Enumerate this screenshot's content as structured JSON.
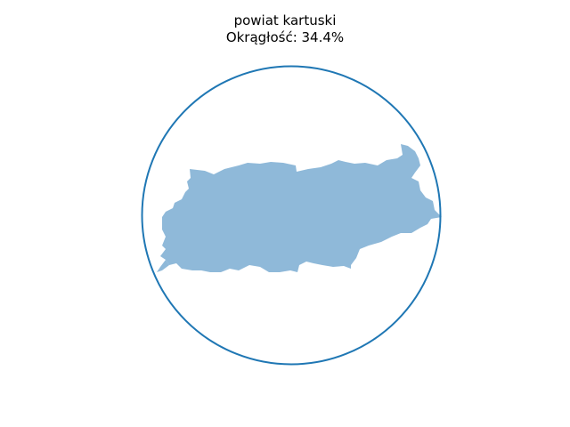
{
  "chart_data": {
    "type": "area",
    "title": "powiat kartuski",
    "subtitle": "Okrągłość: 34.4%",
    "metric": {
      "label": "Okrągłość",
      "value_percent": 34.4
    },
    "series": [
      {
        "kind": "region-shape",
        "color": "#8fb9d9"
      },
      {
        "kind": "enclosing-circle",
        "color": "#1f77b4"
      }
    ],
    "axes": "off",
    "grid": false,
    "legend": "none"
  }
}
